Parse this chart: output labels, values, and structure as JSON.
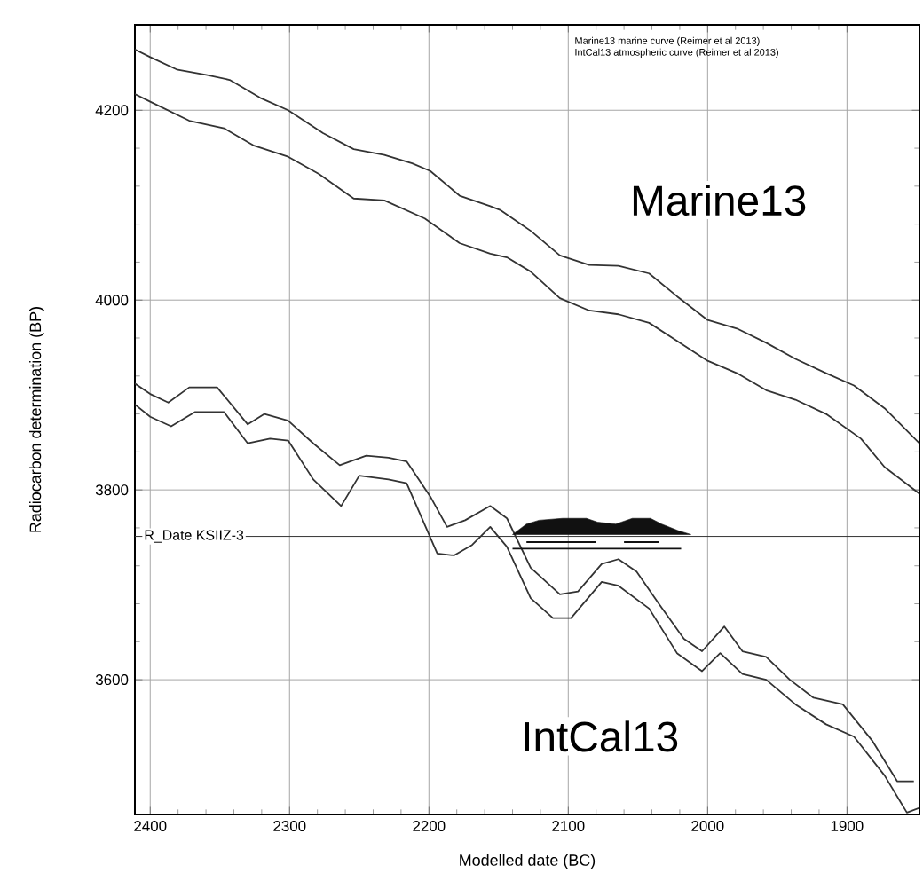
{
  "chart_data": {
    "type": "line",
    "xlabel": "Modelled date (BC)",
    "ylabel": "Radiocarbon determination (BP)",
    "xlim": [
      2411,
      1848
    ],
    "ylim": [
      3458,
      4290
    ],
    "xticks": [
      2400,
      2300,
      2200,
      2100,
      2000,
      1900
    ],
    "yticks": [
      3600,
      3800,
      4000,
      4200
    ],
    "grid": true,
    "marker": "none",
    "annotations": [
      "Marine13 marine curve (Reimer et al 2013)",
      "IntCal13 atmospheric curve (Reimer et al 2013)",
      "Marine13",
      "IntCal13"
    ],
    "ref_lines": [
      {
        "axis": "y",
        "value": 3751,
        "label": "R_Date KSIIZ-3",
        "color": "#333333"
      }
    ],
    "series": [
      {
        "color": "#333333",
        "x": [
          2411,
          2400,
          2381,
          2359,
          2343,
          2321,
          2301,
          2276,
          2254,
          2232,
          2212,
          2199,
          2178,
          2156,
          2149,
          2127,
          2106,
          2085,
          2064,
          2042,
          2022,
          2000,
          1979,
          1958,
          1937,
          1915,
          1895,
          1873,
          1848
        ],
        "values": [
          4264,
          4256,
          4243,
          4237,
          4232,
          4213,
          4200,
          4176,
          4159,
          4153,
          4144,
          4136,
          4110,
          4099,
          4095,
          4073,
          4047,
          4037,
          4036,
          4028,
          4004,
          3979,
          3970,
          3955,
          3938,
          3923,
          3910,
          3886,
          3849
        ]
      },
      {
        "color": "#333333",
        "x": [
          2411,
          2400,
          2372,
          2347,
          2326,
          2301,
          2279,
          2254,
          2232,
          2203,
          2178,
          2156,
          2144,
          2127,
          2106,
          2085,
          2064,
          2042,
          2022,
          2000,
          1979,
          1958,
          1937,
          1915,
          1890,
          1873,
          1848
        ],
        "values": [
          4217,
          4209,
          4189,
          4181,
          4163,
          4151,
          4133,
          4107,
          4105,
          4086,
          4060,
          4049,
          4045,
          4030,
          4002,
          3989,
          3985,
          3976,
          3957,
          3936,
          3923,
          3905,
          3895,
          3880,
          3854,
          3824,
          3796
        ]
      },
      {
        "color": "#333333",
        "x": [
          2411,
          2400,
          2387,
          2372,
          2352,
          2330,
          2318,
          2301,
          2283,
          2264,
          2245,
          2229,
          2216,
          2199,
          2187,
          2174,
          2156,
          2144,
          2127,
          2106,
          2093,
          2076,
          2064,
          2051,
          2035,
          2017,
          2004,
          1988,
          1975,
          1958,
          1941,
          1924,
          1903,
          1882,
          1864,
          1852
        ],
        "values": [
          3912,
          3901,
          3892,
          3908,
          3908,
          3869,
          3880,
          3873,
          3849,
          3826,
          3836,
          3834,
          3830,
          3793,
          3761,
          3768,
          3783,
          3770,
          3718,
          3690,
          3693,
          3722,
          3727,
          3714,
          3680,
          3643,
          3630,
          3656,
          3630,
          3624,
          3600,
          3581,
          3574,
          3536,
          3493,
          3493
        ]
      },
      {
        "color": "#333333",
        "x": [
          2411,
          2400,
          2385,
          2368,
          2347,
          2330,
          2314,
          2301,
          2283,
          2263,
          2250,
          2229,
          2216,
          2194,
          2182,
          2169,
          2156,
          2144,
          2127,
          2111,
          2098,
          2076,
          2064,
          2042,
          2022,
          2004,
          1991,
          1975,
          1958,
          1937,
          1915,
          1895,
          1873,
          1857,
          1848
        ],
        "values": [
          3890,
          3877,
          3867,
          3882,
          3882,
          3849,
          3854,
          3852,
          3811,
          3783,
          3815,
          3811,
          3807,
          3733,
          3731,
          3742,
          3761,
          3740,
          3686,
          3665,
          3665,
          3703,
          3699,
          3675,
          3628,
          3609,
          3628,
          3606,
          3600,
          3574,
          3553,
          3540,
          3499,
          3460,
          3465
        ]
      },
      {
        "type": "area",
        "color": "#111111",
        "x": [
          2140,
          2130,
          2121,
          2104,
          2087,
          2079,
          2066,
          2054,
          2041,
          2033,
          2021,
          2012
        ],
        "values": [
          3753,
          3764,
          3768,
          3770,
          3770,
          3766,
          3764,
          3770,
          3770,
          3764,
          3757,
          3753
        ]
      },
      {
        "color": "#111111",
        "x": [
          2130,
          2080
        ],
        "values": [
          3745,
          3745
        ]
      },
      {
        "color": "#111111",
        "x": [
          2060,
          2035
        ],
        "values": [
          3745,
          3745
        ]
      },
      {
        "color": "#111111",
        "x": [
          2140,
          2019
        ],
        "values": [
          3738,
          3738
        ]
      }
    ]
  }
}
